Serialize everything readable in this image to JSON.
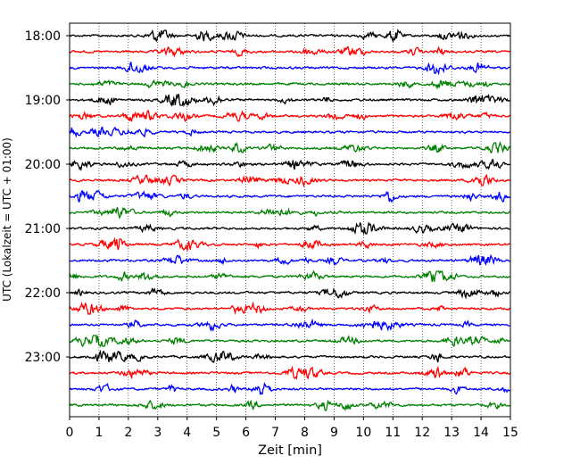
{
  "chart_data": {
    "type": "line",
    "title": "",
    "xlabel": "Zeit  [min]",
    "ylabel": "UTC (Lokalzeit = UTC + 01:00)",
    "xlim": [
      0,
      15
    ],
    "x_ticks": [
      "0",
      "1",
      "2",
      "3",
      "4",
      "5",
      "6",
      "7",
      "8",
      "9",
      "10",
      "11",
      "12",
      "13",
      "14",
      "15"
    ],
    "y_ticks": [
      {
        "label": "18:00",
        "row": 0
      },
      {
        "label": "19:00",
        "row": 4
      },
      {
        "label": "20:00",
        "row": 8
      },
      {
        "label": "21:00",
        "row": 12
      },
      {
        "label": "22:00",
        "row": 16
      },
      {
        "label": "23:00",
        "row": 20
      }
    ],
    "grid": "vertical dotted at each minute",
    "row_colors": [
      "#000000",
      "#ff0000",
      "#0000ff",
      "#008000"
    ],
    "traces": [
      {
        "start": "18:00"
      },
      {
        "start": "18:15"
      },
      {
        "start": "18:30"
      },
      {
        "start": "18:45"
      },
      {
        "start": "19:00"
      },
      {
        "start": "19:15"
      },
      {
        "start": "19:30"
      },
      {
        "start": "19:45"
      },
      {
        "start": "20:00"
      },
      {
        "start": "20:15"
      },
      {
        "start": "20:30"
      },
      {
        "start": "20:45"
      },
      {
        "start": "21:00"
      },
      {
        "start": "21:15"
      },
      {
        "start": "21:30"
      },
      {
        "start": "21:45"
      },
      {
        "start": "22:00"
      },
      {
        "start": "22:15"
      },
      {
        "start": "22:30"
      },
      {
        "start": "22:45"
      },
      {
        "start": "23:00"
      },
      {
        "start": "23:15"
      },
      {
        "start": "23:30"
      },
      {
        "start": "23:45"
      }
    ]
  }
}
